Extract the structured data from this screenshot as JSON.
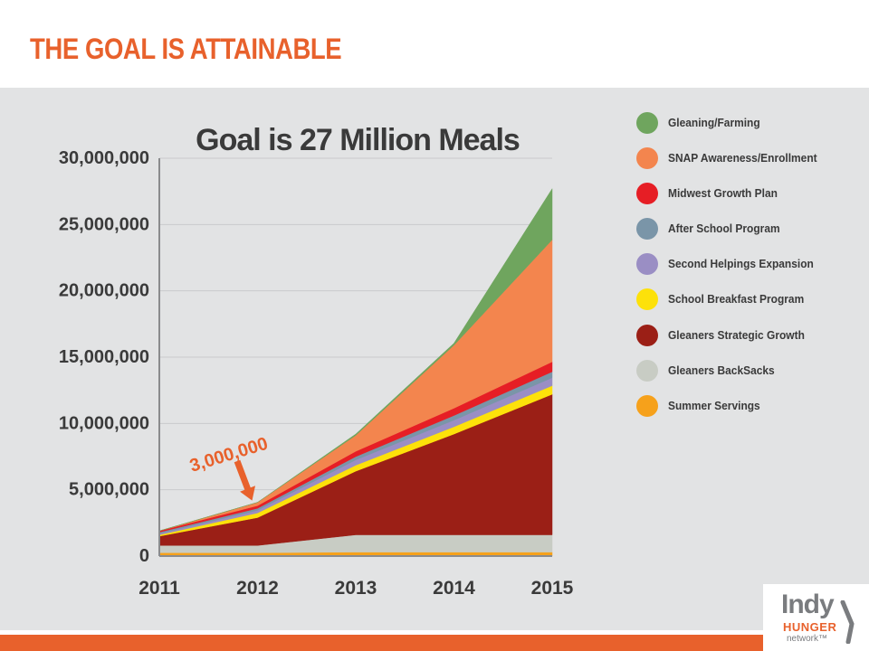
{
  "slide": {
    "title": "THE GOAL IS ATTAINABLE"
  },
  "colors": {
    "accent": "#e8612c",
    "panel": "#e2e3e4",
    "text": "#3a3a3a"
  },
  "chart_data": {
    "type": "area",
    "stacked": true,
    "title": "Goal is 27 Million Meals",
    "xlabel": "",
    "ylabel": "",
    "x": [
      "2011",
      "2012",
      "2013",
      "2014",
      "2015"
    ],
    "y_ticks": [
      "0",
      "5,000,000",
      "10,000,000",
      "15,000,000",
      "20,000,000",
      "25,000,000",
      "30,000,000"
    ],
    "ylim": [
      0,
      30000000
    ],
    "grid": true,
    "legend_position": "right",
    "series": [
      {
        "name": "Summer Servings",
        "color": "#f6a11b",
        "values": [
          250000,
          250000,
          300000,
          300000,
          300000
        ]
      },
      {
        "name": "Gleaners BackSacks",
        "color": "#c8ccc4",
        "values": [
          550000,
          550000,
          1300000,
          1300000,
          1300000
        ]
      },
      {
        "name": "Gleaners Strategic Growth",
        "color": "#9b1f16",
        "values": [
          700000,
          2100000,
          4800000,
          7600000,
          10600000
        ]
      },
      {
        "name": "School Breakfast Program",
        "color": "#fde10a",
        "values": [
          100000,
          350000,
          450000,
          550000,
          650000
        ]
      },
      {
        "name": "Second Helpings Expansion",
        "color": "#9a8ec4",
        "values": [
          100000,
          200000,
          400000,
          500000,
          600000
        ]
      },
      {
        "name": "After School Program",
        "color": "#7a95a8",
        "values": [
          100000,
          150000,
          250000,
          350000,
          450000
        ]
      },
      {
        "name": "Midwest Growth Plan",
        "color": "#e61e25",
        "values": [
          100000,
          200000,
          400000,
          550000,
          750000
        ]
      },
      {
        "name": "SNAP Awareness/Enrollment",
        "color": "#f3854e",
        "values": [
          0,
          250000,
          1200000,
          4750000,
          9200000
        ]
      },
      {
        "name": "Gleaning/Farming",
        "color": "#6fa55e",
        "values": [
          0,
          0,
          100000,
          150000,
          3850000
        ]
      }
    ],
    "legend_order": [
      "Gleaning/Farming",
      "SNAP Awareness/Enrollment",
      "Midwest Growth Plan",
      "After School Program",
      "Second Helpings Expansion",
      "School Breakfast Program",
      "Gleaners Strategic Growth",
      "Gleaners BackSacks",
      "Summer Servings"
    ],
    "annotation": {
      "text": "3,000,000",
      "x": "2012",
      "value": 3000000
    }
  },
  "logo": {
    "line1": "Indy",
    "line2": "HUNGER",
    "line3": "network™"
  }
}
